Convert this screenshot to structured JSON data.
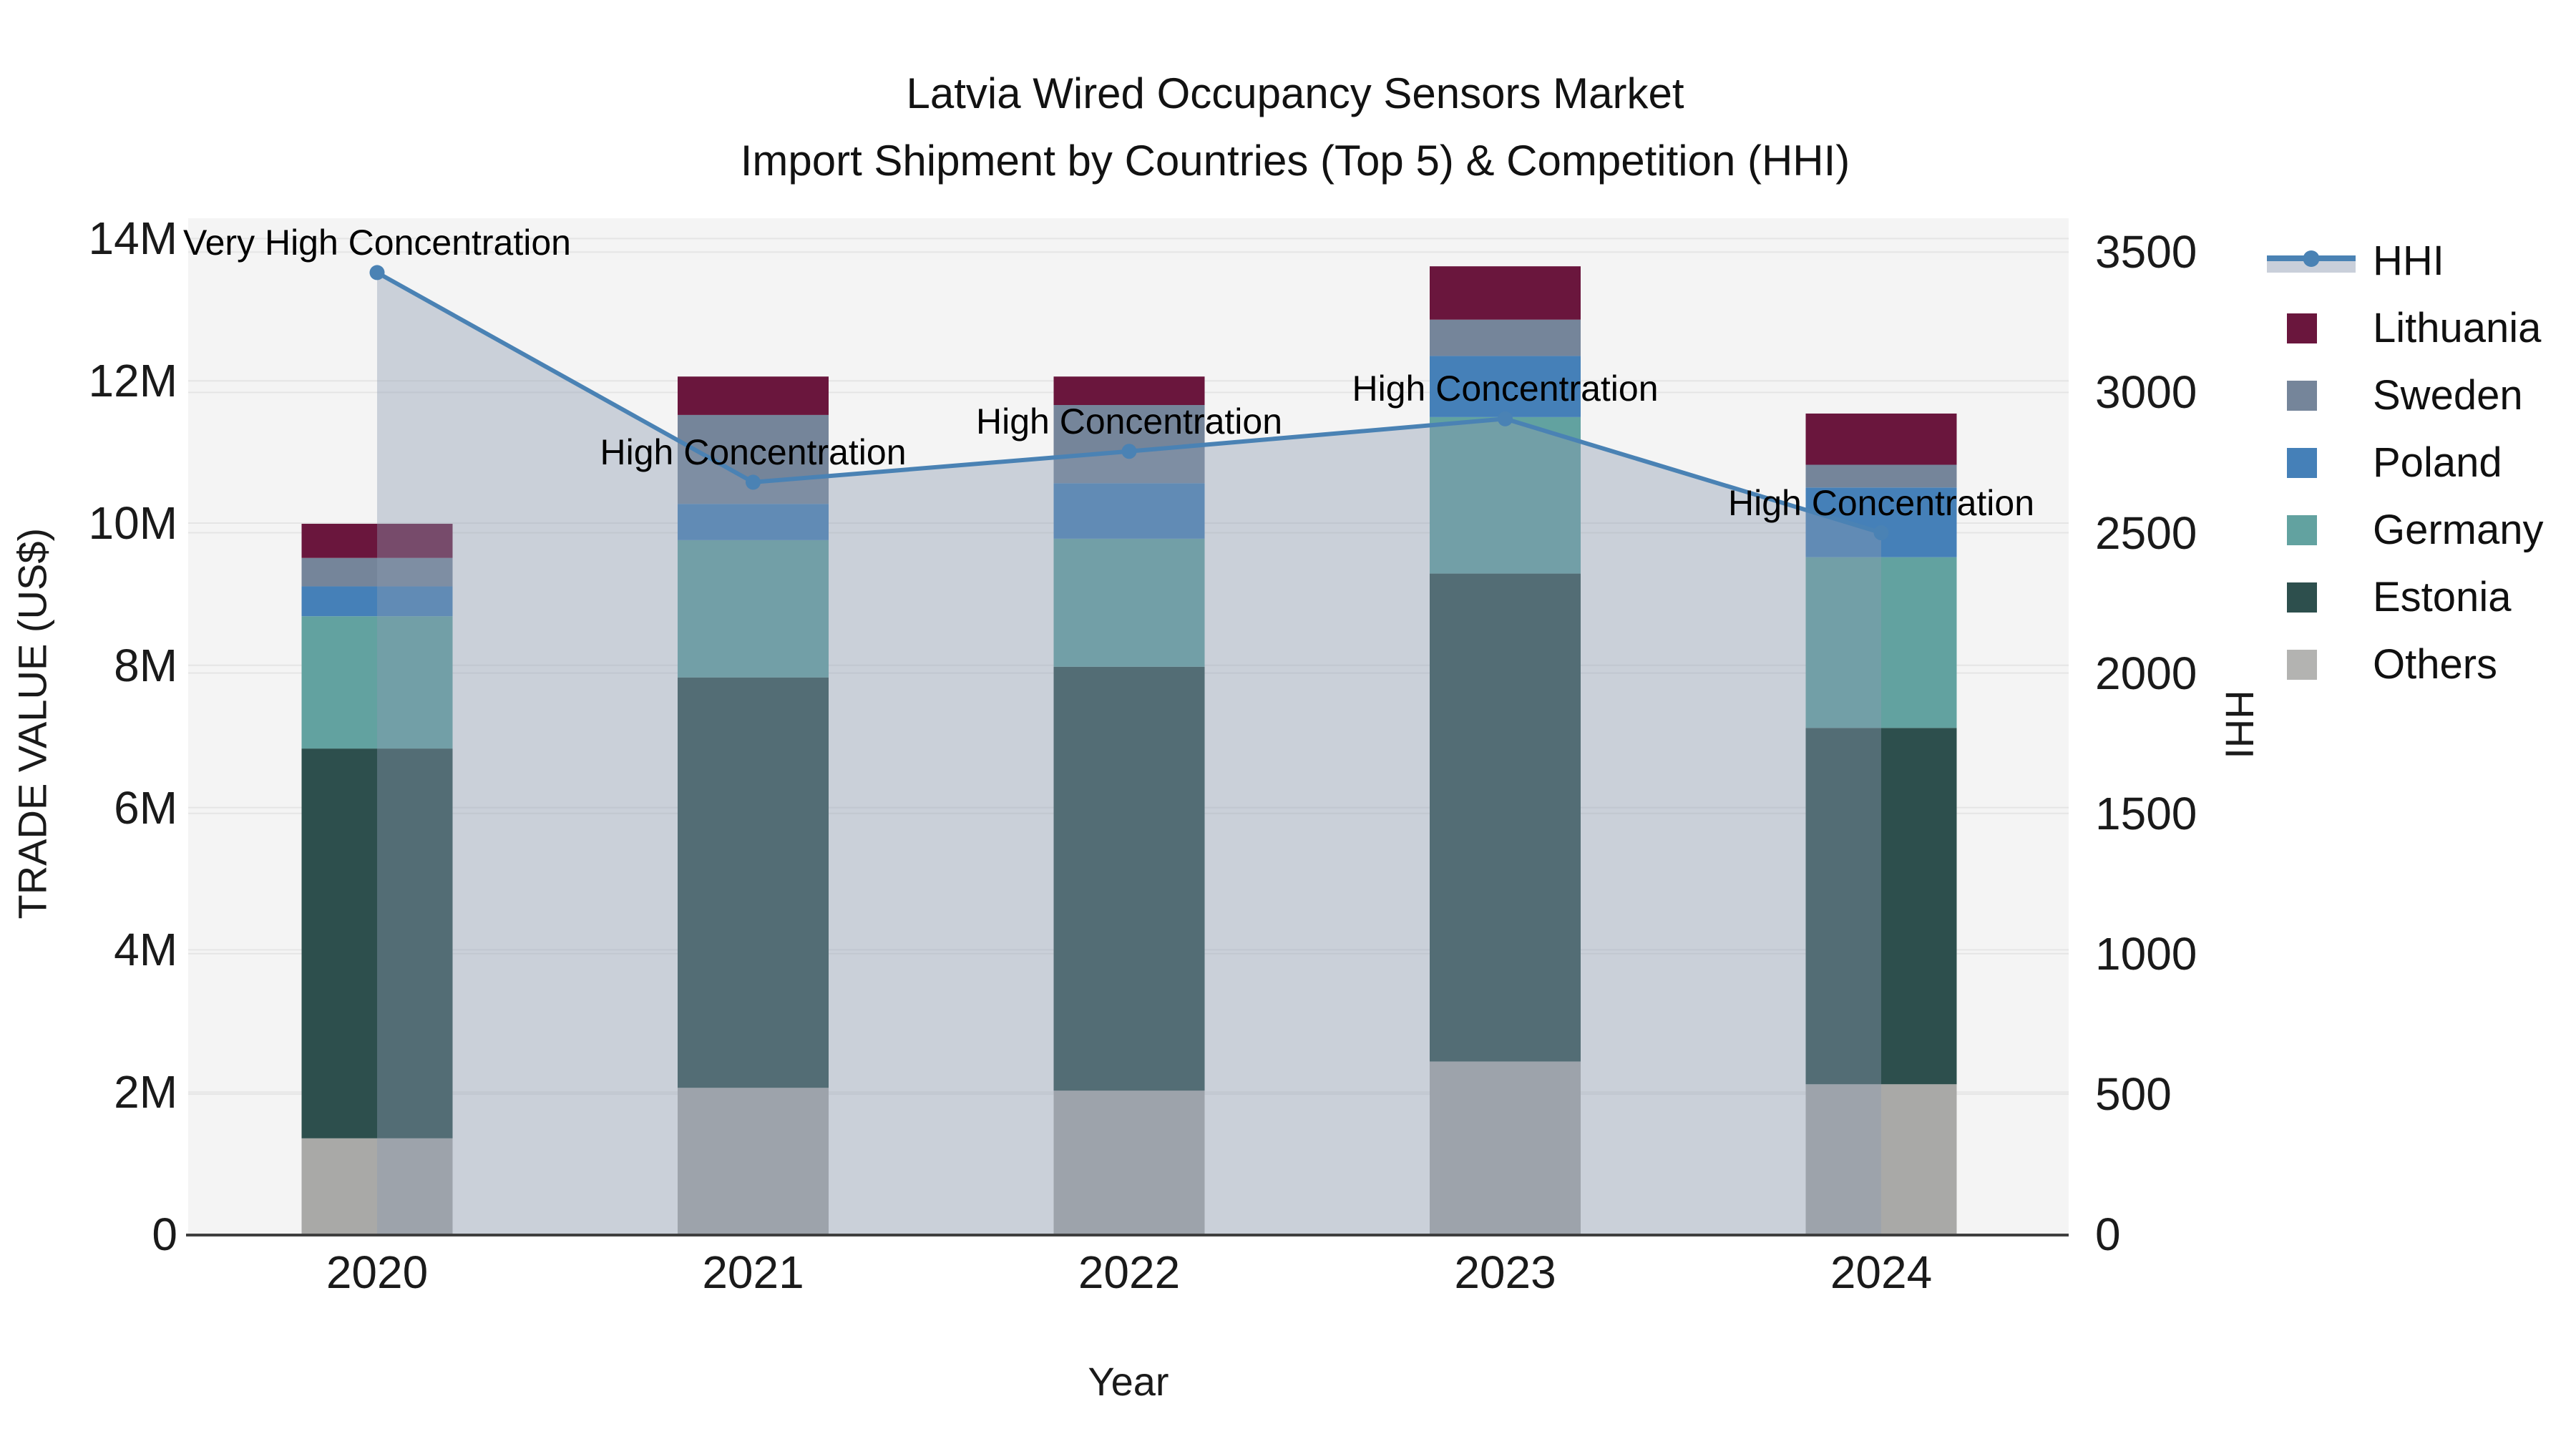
{
  "title": "Latvia Wired Occupancy Sensors Market",
  "subtitle": "Import Shipment by Countries (Top 5) & Competition (HHI)",
  "axes": {
    "x_title": "Year",
    "y_left_title": "TRADE VALUE (US$)",
    "y_right_title": "HHI",
    "y_left_tick_labels": [
      "0",
      "2M",
      "4M",
      "6M",
      "8M",
      "10M",
      "12M",
      "14M"
    ],
    "y_right_tick_labels": [
      "0",
      "500",
      "1000",
      "1500",
      "2000",
      "2500",
      "3000",
      "3500"
    ]
  },
  "chart_data": {
    "type": "bar+line",
    "title": "Latvia Wired Occupancy Sensors Market — Import Shipment by Countries (Top 5) & Competition (HHI)",
    "categories": [
      "2020",
      "2021",
      "2022",
      "2023",
      "2024"
    ],
    "bar_unit": "Trade value, millions US$",
    "stack_order_bottom_to_top": [
      "Others",
      "Estonia",
      "Germany",
      "Poland",
      "Sweden",
      "Lithuania"
    ],
    "series": [
      {
        "name": "Others",
        "color": "#a9a9a7",
        "values": [
          1.35,
          2.06,
          2.02,
          2.43,
          2.11
        ]
      },
      {
        "name": "Estonia",
        "color": "#2d4f4d",
        "values": [
          5.48,
          5.77,
          5.96,
          6.86,
          5.01
        ]
      },
      {
        "name": "Germany",
        "color": "#62a2a0",
        "values": [
          1.86,
          1.93,
          1.8,
          2.2,
          2.4
        ]
      },
      {
        "name": "Poland",
        "color": "#4580b8",
        "values": [
          0.42,
          0.51,
          0.78,
          0.86,
          0.98
        ]
      },
      {
        "name": "Sweden",
        "color": "#75859a",
        "values": [
          0.4,
          1.25,
          1.1,
          0.51,
          0.32
        ]
      },
      {
        "name": "Lithuania",
        "color": "#6a163d",
        "values": [
          0.48,
          0.54,
          0.4,
          0.75,
          0.72
        ]
      }
    ],
    "bar_totals": [
      9.99,
      12.06,
      12.06,
      13.61,
      11.54
    ],
    "hhi": {
      "name": "HHI",
      "line_color": "#4a82b4",
      "area_color": "rgba(140,155,178,0.40)",
      "values": [
        3427,
        2680,
        2790,
        2906,
        2500
      ]
    },
    "annotations": [
      {
        "category": "2020",
        "text": "Very High Concentration"
      },
      {
        "category": "2021",
        "text": "High Concentration"
      },
      {
        "category": "2022",
        "text": "High Concentration"
      },
      {
        "category": "2023",
        "text": "High Concentration"
      },
      {
        "category": "2024",
        "text": "High Concentration"
      }
    ],
    "y_left_range": [
      0,
      14.28
    ],
    "y_right_range": [
      0,
      3640
    ],
    "grid": true,
    "legend_position": "right"
  },
  "legend": {
    "items": [
      {
        "label": "HHI",
        "type": "line-area",
        "color": "#4a82b4"
      },
      {
        "label": "Lithuania",
        "type": "square",
        "color": "#6a163d"
      },
      {
        "label": "Sweden",
        "type": "square",
        "color": "#75859a"
      },
      {
        "label": "Poland",
        "type": "square",
        "color": "#4580b8"
      },
      {
        "label": "Germany",
        "type": "square",
        "color": "#62a2a0"
      },
      {
        "label": "Estonia",
        "type": "square",
        "color": "#2d4f4d"
      },
      {
        "label": "Others",
        "type": "square",
        "color": "#b3b3b1"
      }
    ]
  },
  "colors": {
    "plot_background": "#f4f4f4",
    "gridline": "#e5e5e5",
    "axis_line": "#3f3f3f",
    "text": "#1a1a1a"
  }
}
